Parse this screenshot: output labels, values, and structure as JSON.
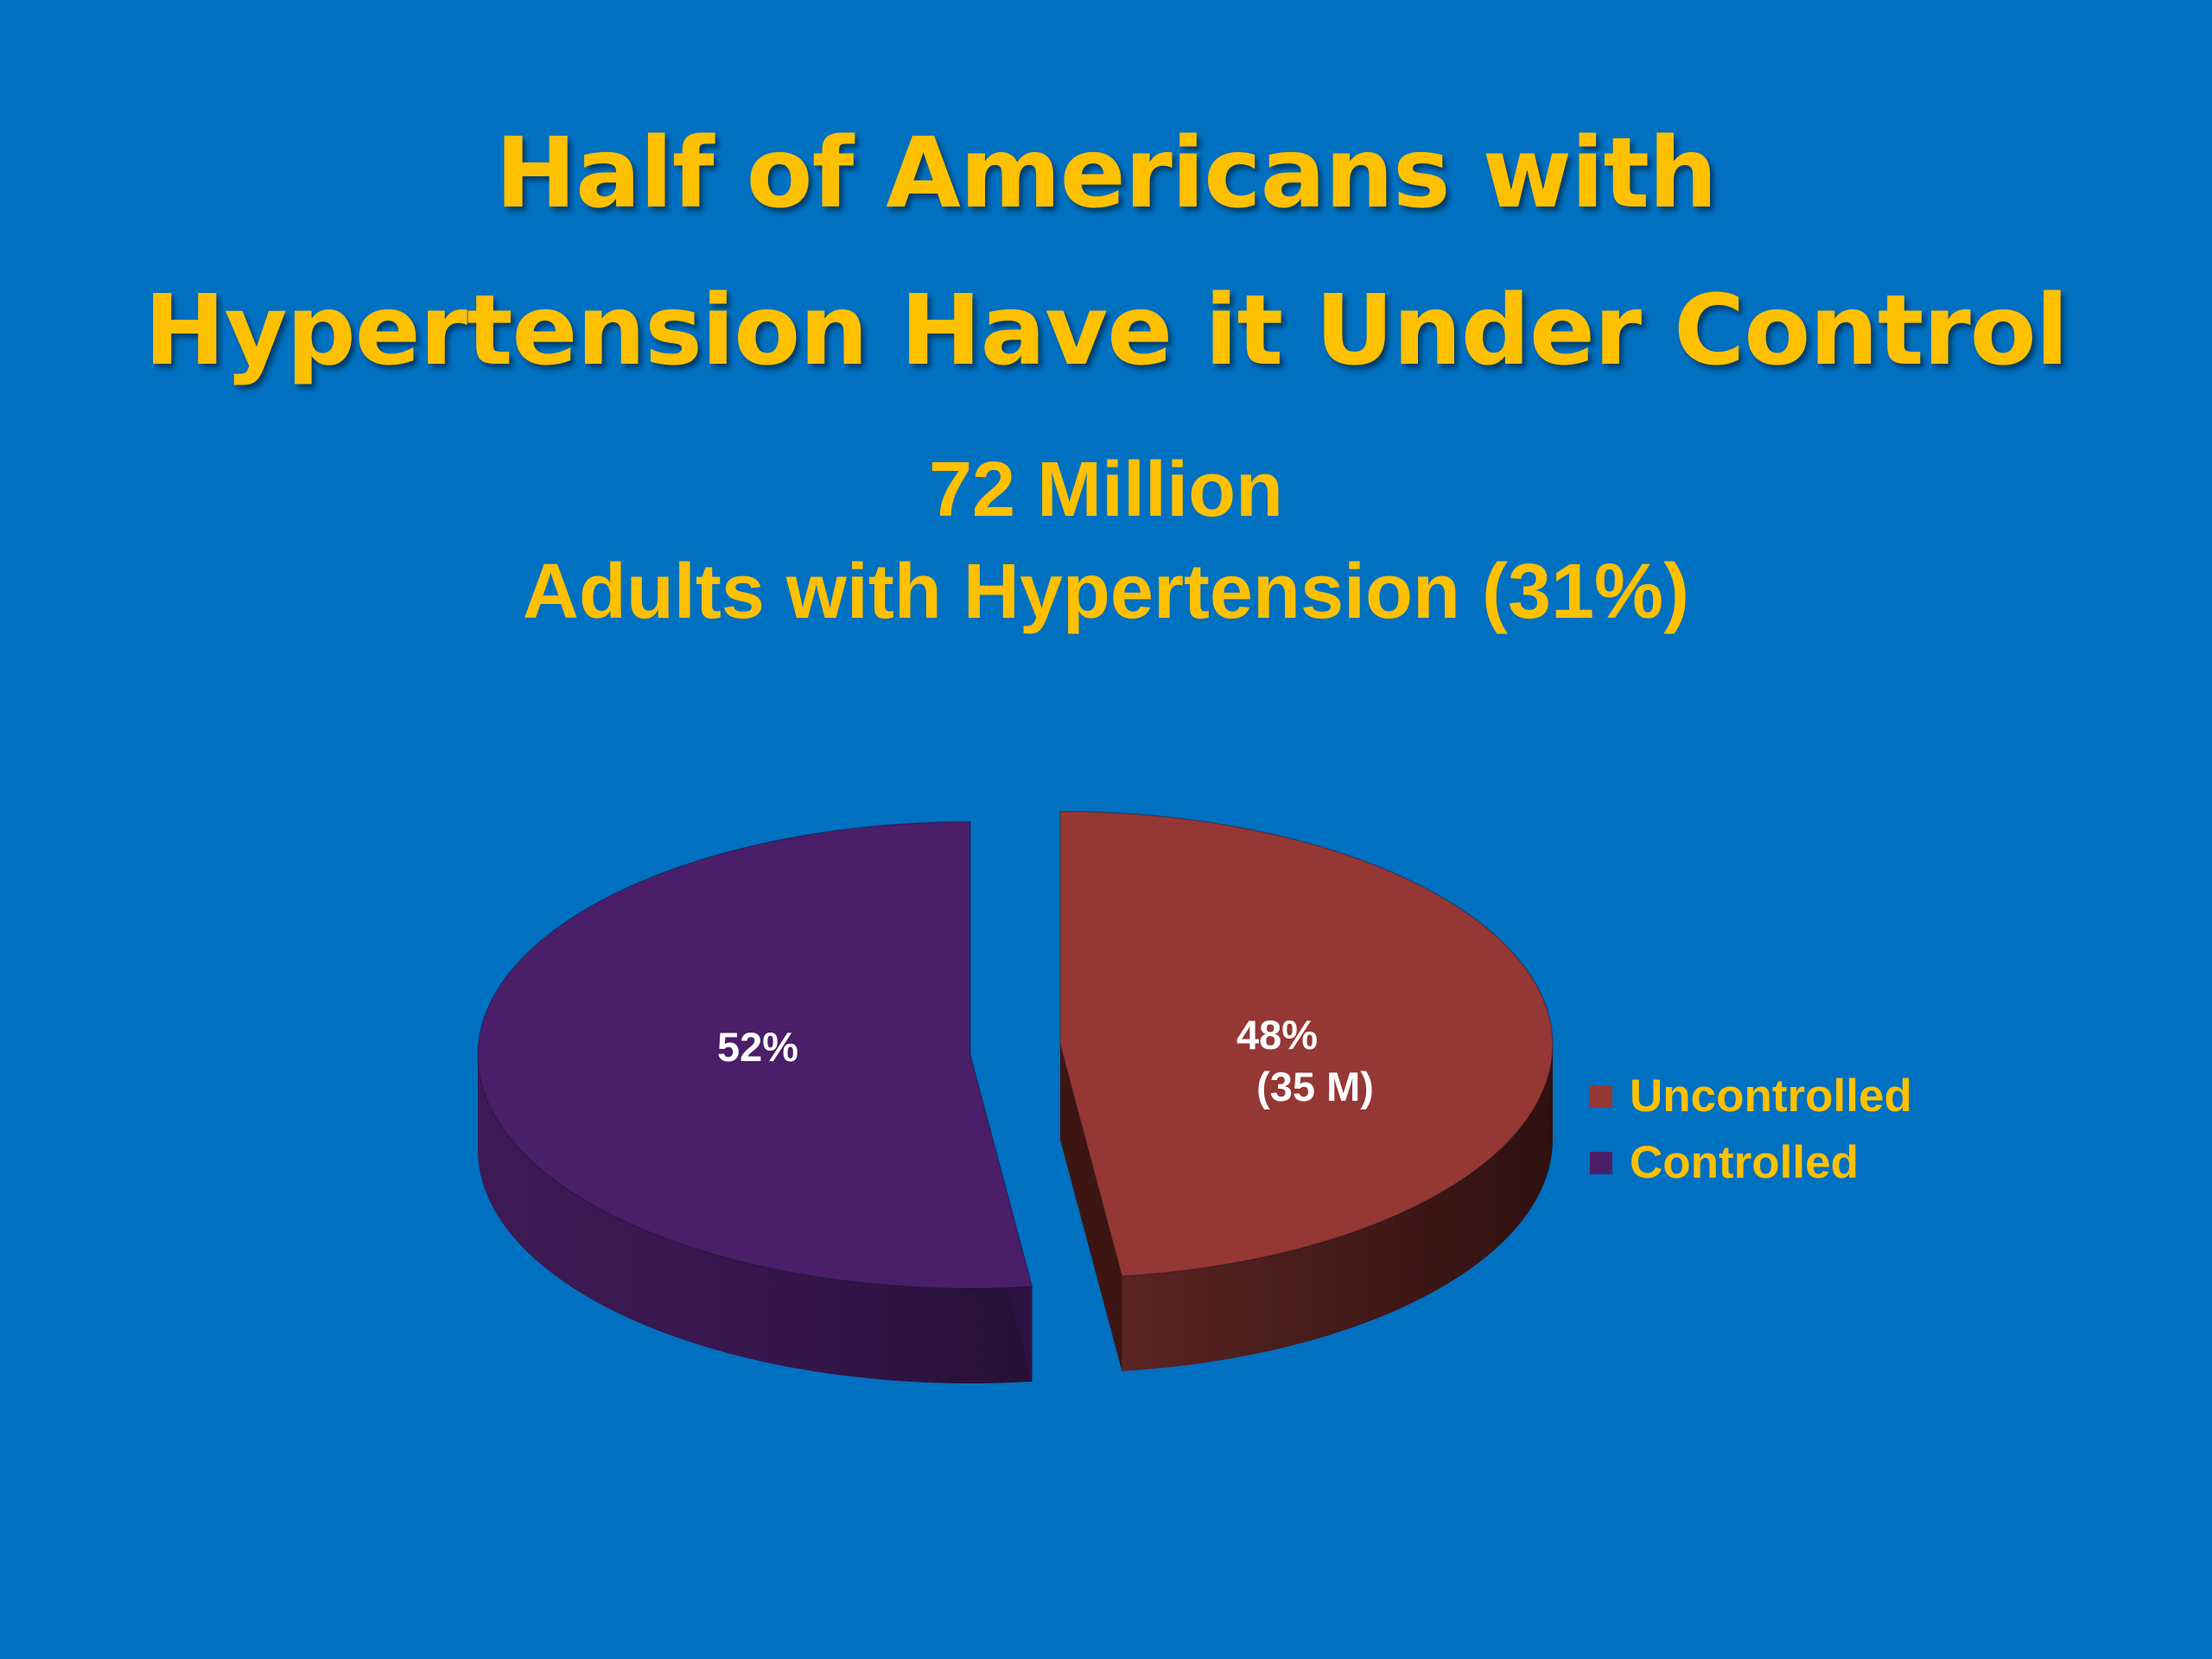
{
  "slide": {
    "background": "#0070C0",
    "title_lines": [
      "Half of Americans with",
      "Hypertension Have it Under Control"
    ],
    "title_color": "#FFC000"
  },
  "chart_data": {
    "type": "pie",
    "subtitle_lines": [
      "72 Million",
      "Adults with Hypertension (31%)"
    ],
    "slices": [
      {
        "name": "Uncontrolled",
        "value": 48,
        "label": "48%",
        "sublabel": "(35 M)",
        "color": "#953735"
      },
      {
        "name": "Controlled",
        "value": 52,
        "label": "52%",
        "color": "#4B1E69"
      }
    ],
    "legend": {
      "position": "right",
      "entries": [
        "Uncontrolled",
        "Controlled"
      ]
    },
    "style": "3d-exploded"
  }
}
